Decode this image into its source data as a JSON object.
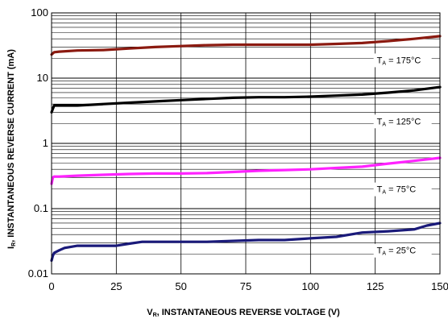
{
  "chart_data": {
    "type": "line",
    "title": "",
    "xlabel": "VR, INSTANTANEOUS REVERSE VOLTAGE (V)",
    "xlabel_parts": {
      "main": "V",
      "sub": "R",
      "rest": ", INSTANTANEOUS REVERSE VOLTAGE (V)"
    },
    "ylabel": "IR, INSTANTANEOUS REVERSE CURRENT (mA)",
    "ylabel_parts": {
      "main": "I",
      "sub": "R",
      "rest": ", INSTANTANEOUS REVERSE CURRENT (mA)"
    },
    "xlim": [
      0,
      150
    ],
    "ylim": [
      0.01,
      100
    ],
    "yscale": "log",
    "grid": true,
    "x_ticks": [
      {
        "value": 0,
        "label": "0"
      },
      {
        "value": 25,
        "label": "25"
      },
      {
        "value": 50,
        "label": "50"
      },
      {
        "value": 75,
        "label": "75"
      },
      {
        "value": 100,
        "label": "100"
      },
      {
        "value": 125,
        "label": "125"
      },
      {
        "value": 150,
        "label": "150"
      }
    ],
    "y_ticks": [
      {
        "value": 0.01,
        "label": "0.01"
      },
      {
        "value": 0.1,
        "label": "0.1"
      },
      {
        "value": 1,
        "label": "1"
      },
      {
        "value": 10,
        "label": "10"
      },
      {
        "value": 100,
        "label": "100"
      }
    ],
    "series": [
      {
        "name": "TA = 175°C",
        "label_parts": {
          "main": "T",
          "sub": "A",
          "rest": " = 175°C"
        },
        "label_at": {
          "x": 125,
          "y": 19
        },
        "color": "#8b1a10",
        "x": [
          0,
          1,
          3,
          10,
          20,
          30,
          40,
          50,
          60,
          70,
          80,
          90,
          100,
          110,
          120,
          130,
          140,
          150
        ],
        "y": [
          23,
          25,
          25.5,
          26.5,
          27,
          28.5,
          30,
          31,
          32,
          32.5,
          32.5,
          32.5,
          32.5,
          33.5,
          34.5,
          37,
          40,
          44
        ]
      },
      {
        "name": "TA = 125°C",
        "label_parts": {
          "main": "T",
          "sub": "A",
          "rest": " = 125°C"
        },
        "label_at": {
          "x": 125,
          "y": 2.2
        },
        "color": "#000000",
        "x": [
          0,
          0.5,
          1,
          3,
          10,
          20,
          30,
          40,
          50,
          60,
          70,
          80,
          90,
          100,
          110,
          120,
          130,
          140,
          150
        ],
        "y": [
          3.0,
          3.4,
          3.8,
          3.8,
          3.8,
          4.0,
          4.2,
          4.4,
          4.6,
          4.8,
          5.0,
          5.1,
          5.1,
          5.2,
          5.4,
          5.6,
          6.0,
          6.5,
          7.3
        ]
      },
      {
        "name": "TA = 75°C",
        "label_parts": {
          "main": "T",
          "sub": "A",
          "rest": " = 75°C"
        },
        "label_at": {
          "x": 125,
          "y": 0.2
        },
        "color": "#ff22ff",
        "x": [
          0,
          0.5,
          1,
          3,
          10,
          20,
          30,
          40,
          50,
          60,
          70,
          80,
          90,
          100,
          110,
          120,
          130,
          140,
          150
        ],
        "y": [
          0.24,
          0.3,
          0.31,
          0.31,
          0.32,
          0.33,
          0.34,
          0.345,
          0.345,
          0.35,
          0.365,
          0.38,
          0.39,
          0.4,
          0.42,
          0.44,
          0.49,
          0.54,
          0.6
        ]
      },
      {
        "name": "TA = 25°C",
        "label_parts": {
          "main": "T",
          "sub": "A",
          "rest": " = 25°C"
        },
        "label_at": {
          "x": 125,
          "y": 0.023
        },
        "color": "#1a1a7a",
        "x": [
          0,
          0.5,
          1,
          3,
          5,
          10,
          20,
          25,
          30,
          35,
          40,
          50,
          60,
          70,
          80,
          90,
          100,
          110,
          120,
          130,
          140,
          145,
          150
        ],
        "y": [
          0.016,
          0.019,
          0.021,
          0.023,
          0.025,
          0.027,
          0.027,
          0.027,
          0.029,
          0.031,
          0.031,
          0.031,
          0.031,
          0.032,
          0.033,
          0.033,
          0.035,
          0.037,
          0.043,
          0.045,
          0.048,
          0.055,
          0.06
        ]
      }
    ]
  }
}
